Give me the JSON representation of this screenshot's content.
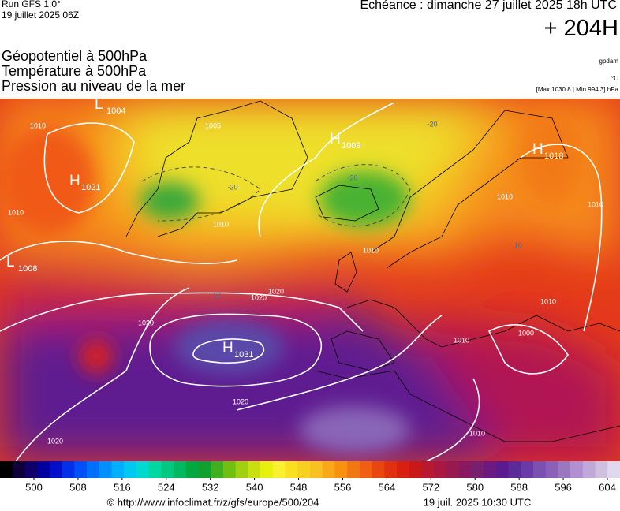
{
  "header": {
    "run": "Run GFS 1.0°",
    "run_date": "19 juillet 2025 06Z",
    "echeance": "Echéance : dimanche 27 juillet 2025 18h UTC",
    "step": "+ 204H",
    "layers": [
      "Géopotentiel à 500hPa",
      "Température à 500hPa",
      "Pression au niveau de la mer"
    ],
    "units": [
      "gpdam",
      "°C",
      "[Max 1030.8 | Min 994.3] hPa"
    ]
  },
  "map": {
    "pressure_centers": [
      {
        "kind": "H",
        "value": "1031"
      },
      {
        "kind": "L",
        "value": "1004"
      },
      {
        "kind": "H",
        "value": "1009"
      },
      {
        "kind": "H",
        "value": "1018"
      },
      {
        "kind": "H",
        "value": "1021"
      },
      {
        "kind": "L",
        "value": "1008"
      }
    ],
    "isobar_labels": [
      "1010",
      "1005",
      "1010",
      "1010",
      "1020",
      "1020",
      "1020",
      "1020",
      "1020",
      "1010",
      "1010",
      "1010",
      "1000",
      "1010",
      "1010",
      "1010"
    ],
    "temperature_labels": [
      "-20",
      "-20",
      "-20",
      "10",
      "10"
    ]
  },
  "scale": {
    "ticks": [
      500,
      508,
      516,
      524,
      532,
      540,
      548,
      556,
      564,
      572,
      580,
      588,
      596,
      604
    ]
  },
  "footer": {
    "source": "© http://www.infoclimat.fr/z/gfs/europe/500/204",
    "generated": "19 juil. 2025 10:30 UTC"
  }
}
